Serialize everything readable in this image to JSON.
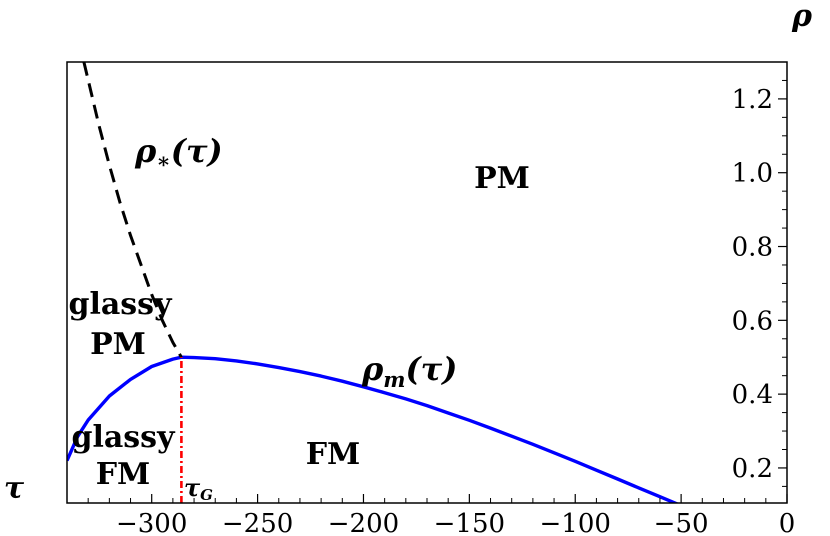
{
  "chart_data": {
    "type": "line",
    "xlabel": "τ",
    "ylabel": "ρ",
    "xlim": [
      -340,
      0
    ],
    "ylim": [
      0.105,
      1.3
    ],
    "xticks": [
      -300,
      -250,
      -200,
      -150,
      -100,
      -50,
      0
    ],
    "xtick_labels": [
      "−300",
      "−250",
      "−200",
      "−150",
      "−100",
      "−50",
      "0"
    ],
    "yticks": [
      0.2,
      0.4,
      0.6,
      0.8,
      1.0,
      1.2
    ],
    "ytick_labels": [
      "0.2",
      "0.4",
      "0.6",
      "0.8",
      "1.0",
      "1.2"
    ],
    "series": [
      {
        "name": "ρm(τ)",
        "style": "solid",
        "color": "#0000ff",
        "x": [
          -340,
          -335,
          -330,
          -320,
          -310,
          -300,
          -290,
          -286,
          -280,
          -270,
          -260,
          -250,
          -240,
          -230,
          -220,
          -210,
          -200,
          -190,
          -180,
          -170,
          -160,
          -150,
          -140,
          -130,
          -120,
          -110,
          -100,
          -90,
          -80,
          -70,
          -60,
          -50
        ],
        "y": [
          0.22,
          0.285,
          0.33,
          0.395,
          0.44,
          0.475,
          0.495,
          0.5,
          0.499,
          0.496,
          0.49,
          0.482,
          0.472,
          0.461,
          0.449,
          0.435,
          0.42,
          0.404,
          0.387,
          0.369,
          0.349,
          0.329,
          0.308,
          0.286,
          0.264,
          0.241,
          0.218,
          0.194,
          0.17,
          0.146,
          0.122,
          0.098
        ]
      },
      {
        "name": "ρ*(τ)",
        "style": "dashed",
        "color": "#000000",
        "x": [
          -332,
          -325,
          -320,
          -315,
          -310,
          -305,
          -300,
          -295,
          -290,
          -286
        ],
        "y": [
          1.3,
          1.13,
          1.02,
          0.92,
          0.83,
          0.75,
          0.67,
          0.6,
          0.54,
          0.5
        ]
      },
      {
        "name": "τG",
        "style": "dash-dot",
        "color": "#ff0000",
        "x": [
          -286,
          -286
        ],
        "y": [
          0.105,
          0.5
        ]
      }
    ],
    "series_labels": {
      "rho_m": {
        "main": "ρ",
        "sub": "m",
        "arg": "(τ)"
      },
      "rho_star": {
        "main": "ρ",
        "sub": "∗",
        "arg": "(τ)"
      },
      "tau_g": {
        "main": "τ",
        "sub": "G"
      }
    },
    "annotations": {
      "pm": "PM",
      "glassy_pm_1": "glassy",
      "glassy_pm_2": "PM",
      "glassy_fm_1": "glassy",
      "glassy_fm_2": "FM",
      "fm": "FM"
    },
    "grid": false,
    "legend": "none"
  }
}
